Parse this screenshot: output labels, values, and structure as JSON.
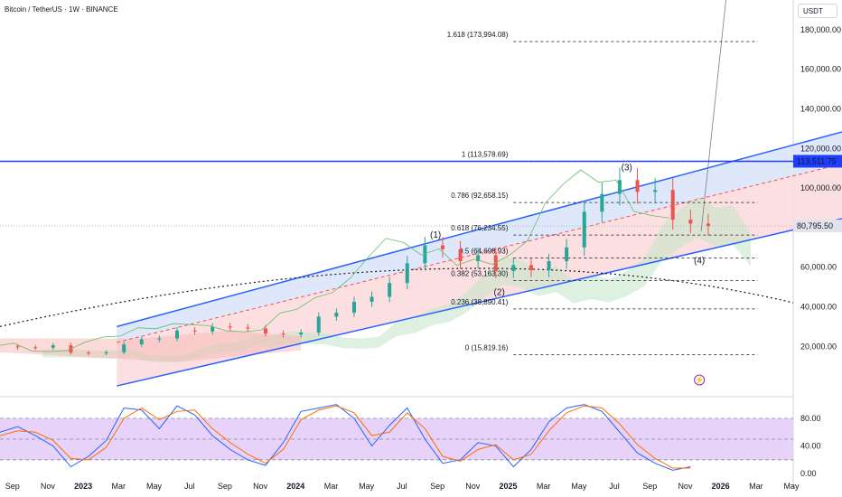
{
  "header": {
    "symbol_title": "Bitcoin / TetherUS · 1W · BINANCE",
    "currency_label": "USDT"
  },
  "colors": {
    "channel_blue": "#2962ff",
    "channel_fill": "#dbe6fb",
    "channel_lower_fill": "#fbd9dc",
    "candle_up": "#26a69a",
    "candle_down": "#ef5350",
    "cloud_green": "#c8e6c9",
    "cloud_red": "#f5b7b4",
    "stoch_band": "#e1c8f7",
    "stoch_k": "#2962ff",
    "stoch_d": "#ff6d00",
    "price_line": "#1f3fff",
    "last_price_badge": "#e0e3eb"
  },
  "chart_data": [
    {
      "type": "line",
      "title": "Bitcoin / TetherUS · 1W · BINANCE",
      "yaxis": {
        "ticks": [
          20000,
          40000,
          60000,
          80000,
          100000,
          120000,
          140000,
          160000,
          180000
        ],
        "tick_labels": [
          "20,000.00",
          "40,000.00",
          "60,000.00",
          "80,000.00",
          "100,000.00",
          "120,000.00",
          "140,000.00",
          "160,000.00",
          "180,000.00"
        ],
        "range": [
          -5000,
          195000
        ]
      },
      "xaxis": {
        "tick_labels": [
          "Sep",
          "Nov",
          "2023",
          "Mar",
          "May",
          "Jul",
          "Sep",
          "Nov",
          "2024",
          "Mar",
          "May",
          "Jul",
          "Sep",
          "Nov",
          "2025",
          "Mar",
          "May",
          "Jul",
          "Sep",
          "Nov",
          "2026",
          "Mar",
          "May"
        ],
        "range_months": [
          0,
          22.4
        ]
      },
      "price_badges": [
        {
          "label": "113,511.75",
          "value": 113511.75,
          "style": "blue"
        },
        {
          "label": "80,795.50",
          "value": 80795.5,
          "style": "grey"
        }
      ],
      "fib_levels": [
        {
          "label": "1.618 (173,994.08)",
          "value": 173994.08
        },
        {
          "label": "1 (113,578.69)",
          "value": 113578.69
        },
        {
          "label": "0.786 (92,658.15)",
          "value": 92658.15
        },
        {
          "label": "0.618 (76,234.55)",
          "value": 76234.55
        },
        {
          "label": "0.5 (64,698.93)",
          "value": 64698.93
        },
        {
          "label": "0.382 (53,163.30)",
          "value": 53163.3
        },
        {
          "label": "0.236 (38,890.41)",
          "value": 38890.41
        },
        {
          "label": "0 (15,819.16)",
          "value": 15819.16
        }
      ],
      "wave_labels": [
        {
          "label": "(1)",
          "x": 12.3,
          "y": 75000
        },
        {
          "label": "(2)",
          "x": 14.1,
          "y": 46000
        },
        {
          "label": "(3)",
          "x": 17.7,
          "y": 109000
        },
        {
          "label": "(4)",
          "x": 19.75,
          "y": 62000
        }
      ],
      "channel": {
        "upper": [
          [
            3.3,
            30000
          ],
          [
            28.5,
            151000
          ]
        ],
        "mid": [
          [
            3.3,
            22000
          ],
          [
            28.5,
            133000
          ]
        ],
        "lower": [
          [
            3.3,
            0
          ],
          [
            28.5,
            104000
          ]
        ]
      },
      "close_series": {
        "x": [
          0,
          0.5,
          1,
          1.5,
          2,
          2.5,
          3,
          3.5,
          4,
          4.5,
          5,
          5.5,
          6,
          6.5,
          7,
          7.5,
          8,
          8.5,
          9,
          9.5,
          10,
          10.5,
          11,
          11.5,
          12,
          12.5,
          13,
          13.5,
          14,
          14.5,
          15,
          15.5,
          16,
          16.5,
          17,
          17.5,
          18,
          18.5,
          19,
          19.5,
          20
        ],
        "y": [
          20000,
          19500,
          19300,
          20500,
          16800,
          16500,
          17000,
          21000,
          23500,
          24000,
          28000,
          27500,
          30000,
          29500,
          29000,
          26500,
          26000,
          27000,
          35000,
          37000,
          42500,
          45000,
          52000,
          62000,
          71000,
          69000,
          63000,
          66000,
          58000,
          61000,
          58500,
          63000,
          70000,
          88000,
          97000,
          104000,
          98000,
          99000,
          84000,
          82000,
          80795.5
        ]
      }
    },
    {
      "type": "line",
      "title": "",
      "yaxis": {
        "ticks": [
          0,
          40,
          80
        ],
        "tick_labels": [
          "0.00",
          "40.00",
          "80.00"
        ],
        "range": [
          -5,
          110
        ]
      },
      "bands": [
        20,
        50,
        80
      ],
      "series": [
        {
          "x": [
            0,
            0.5,
            1,
            1.5,
            2,
            2.5,
            3,
            3.5,
            4,
            4.5,
            5,
            5.5,
            6,
            6.5,
            7,
            7.5,
            8,
            8.5,
            9,
            9.5,
            10,
            10.5,
            11,
            11.5,
            12,
            12.5,
            13,
            13.5,
            14,
            14.5,
            15,
            15.5,
            16,
            16.5,
            17,
            17.5,
            18,
            18.5,
            19,
            19.5
          ],
          "y": [
            60,
            68,
            55,
            40,
            10,
            25,
            48,
            95,
            92,
            65,
            98,
            85,
            55,
            35,
            20,
            12,
            45,
            90,
            95,
            100,
            80,
            40,
            70,
            95,
            50,
            15,
            20,
            45,
            40,
            10,
            35,
            75,
            95,
            100,
            90,
            60,
            30,
            15,
            5,
            10
          ]
        },
        {
          "x": [
            0,
            0.5,
            1,
            1.5,
            2,
            2.5,
            3,
            3.5,
            4,
            4.5,
            5,
            5.5,
            6,
            6.5,
            7,
            7.5,
            8,
            8.5,
            9,
            9.5,
            10,
            10.5,
            11,
            11.5,
            12,
            12.5,
            13,
            13.5,
            14,
            14.5,
            15,
            15.5,
            16,
            16.5,
            17,
            17.5,
            18,
            18.5,
            19,
            19.5
          ],
          "y": [
            55,
            62,
            60,
            48,
            22,
            20,
            38,
            80,
            95,
            78,
            90,
            92,
            65,
            45,
            28,
            15,
            35,
            78,
            92,
            98,
            88,
            55,
            60,
            88,
            65,
            25,
            18,
            35,
            42,
            20,
            28,
            62,
            88,
            98,
            95,
            72,
            42,
            22,
            8,
            8
          ]
        }
      ]
    }
  ]
}
